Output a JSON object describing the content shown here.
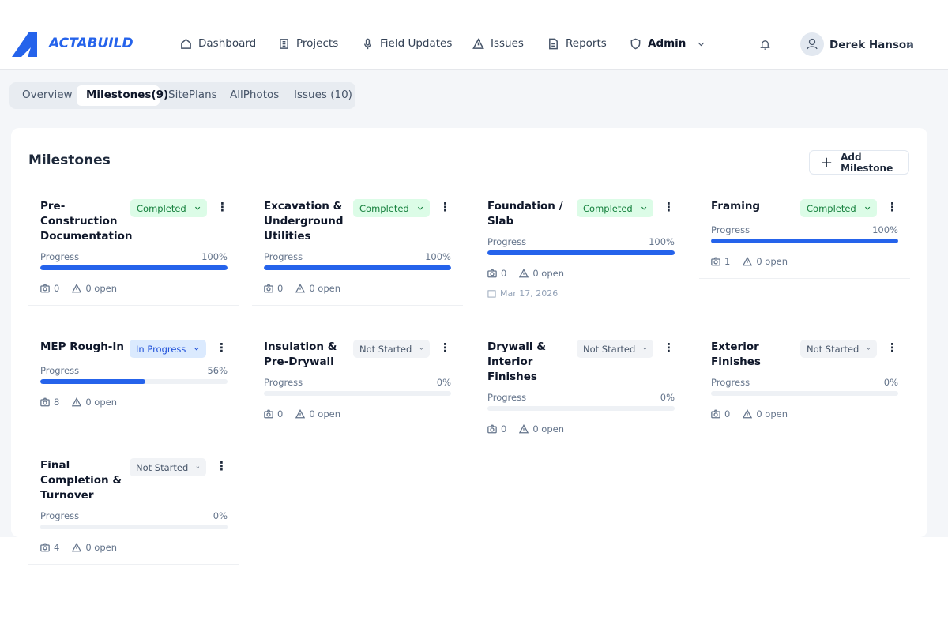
{
  "header": {
    "brand": "ACTABUILD",
    "nav": [
      "Dashboard",
      "Projects",
      "Field Updates",
      "Issues",
      "Reports",
      "Admin"
    ],
    "user": "Derek Hanson"
  },
  "tabs": [
    "Overview",
    "Milestones(9)",
    "SitePlans",
    "AllPhotos",
    "Issues (10)"
  ],
  "panel": {
    "title": "Milestones",
    "add_button": "Add Milestone",
    "progress_label_text": "Progress"
  },
  "milestones": [
    {
      "title": "Pre-Construction Documentation",
      "status": "Completed",
      "progress": 100,
      "progress_label": "100%",
      "photos": 0,
      "issues": "0 open"
    },
    {
      "title": "Excavation & Underground Utilities",
      "status": "Completed",
      "progress": 100,
      "progress_label": "100%",
      "photos": 0,
      "issues": "0 open"
    },
    {
      "title": "Foundation / Slab",
      "status": "Completed",
      "progress": 100,
      "progress_label": "100%",
      "photos": 0,
      "issues": "0 open",
      "date": "Mar 17, 2026"
    },
    {
      "title": "Framing",
      "status": "Completed",
      "progress": 100,
      "progress_label": "100%",
      "photos": 1,
      "issues": "0 open"
    },
    {
      "title": "MEP Rough-In",
      "status": "In Progress",
      "progress": 56,
      "progress_label": "56%",
      "photos": 8,
      "issues": "0 open"
    },
    {
      "title": "Insulation & Pre-Drywall",
      "status": "Not Started",
      "progress": 0,
      "progress_label": "0%",
      "photos": 0,
      "issues": "0 open"
    },
    {
      "title": "Drywall & Interior Finishes",
      "status": "Not Started",
      "progress": 0,
      "progress_label": "0%",
      "photos": 0,
      "issues": "0 open"
    },
    {
      "title": "Exterior Finishes",
      "status": "Not Started",
      "progress": 0,
      "progress_label": "0%",
      "photos": 0,
      "issues": "0 open"
    },
    {
      "title": "Final Completion & Turnover",
      "status": "Not Started",
      "progress": 0,
      "progress_label": "0%",
      "photos": 4,
      "issues": "0 open"
    }
  ]
}
